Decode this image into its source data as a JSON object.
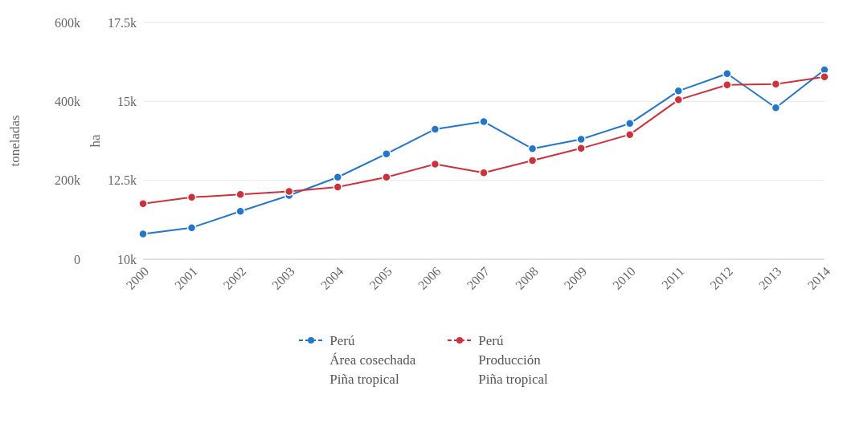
{
  "chart_data": {
    "type": "line",
    "ylabel": "toneladas",
    "y2label": "ha",
    "categories": [
      "2000",
      "2001",
      "2002",
      "2003",
      "2004",
      "2005",
      "2006",
      "2007",
      "2008",
      "2009",
      "2010",
      "2011",
      "2012",
      "2013",
      "2014"
    ],
    "series": [
      {
        "name": "Perú\nÁrea cosechada\nPiña tropical",
        "color": "#1f77d0",
        "axis": "y2",
        "values": [
          10800,
          11000,
          11520,
          12020,
          12600,
          13340,
          14120,
          14360,
          13500,
          13800,
          14300,
          15330,
          15880,
          14800,
          16000
        ]
      },
      {
        "name": "Perú\nProducción\nPiña tropical",
        "color": "#d0303a",
        "axis": "y",
        "values": [
          141000,
          157000,
          164000,
          172000,
          183000,
          208000,
          241000,
          219000,
          250000,
          281000,
          316000,
          404000,
          442000,
          444000,
          462000
        ]
      }
    ],
    "ylim": [
      0,
      600000
    ],
    "yticks": [
      0,
      {
        "value": 200000,
        "label": "200k"
      },
      {
        "value": 400000,
        "label": "400k"
      },
      {
        "value": 600000,
        "label": "600k"
      }
    ],
    "y2lim": [
      10000,
      17500
    ],
    "y2ticks": [
      {
        "value": 10000,
        "label": "10k"
      },
      {
        "value": 12500,
        "label": "12.5k"
      },
      {
        "value": 15000,
        "label": "15k"
      },
      {
        "value": 17500,
        "label": "17.5k"
      }
    ],
    "grid": "y",
    "legend": "bottom",
    "marker": "circle",
    "line_style": "solid"
  }
}
